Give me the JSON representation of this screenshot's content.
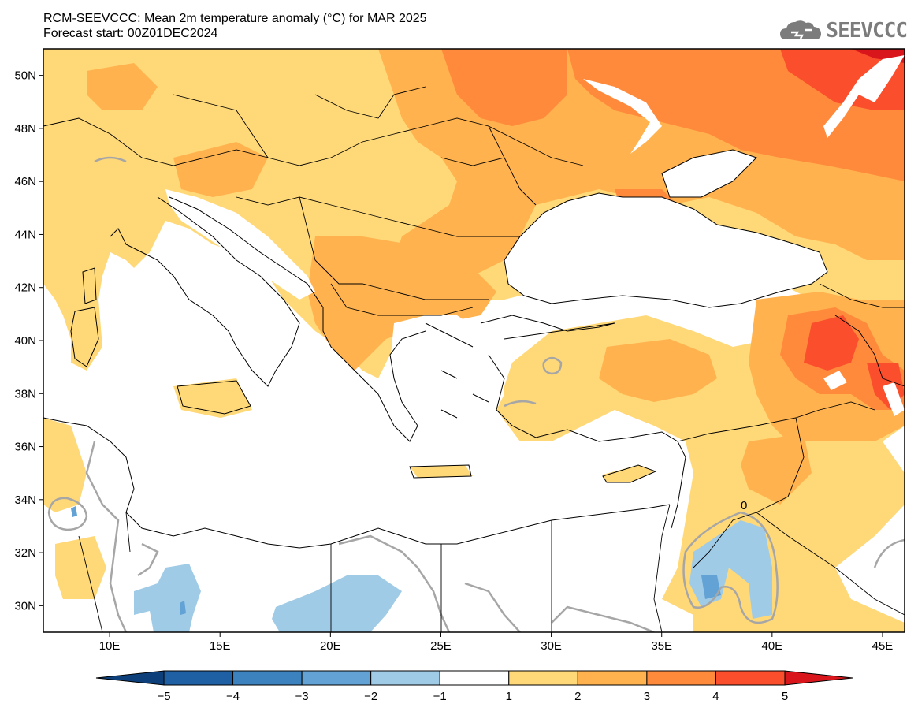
{
  "header": {
    "title_line1": "RCM-SEEVCCC: Mean 2m temperature anomaly (°C) for MAR 2025",
    "title_line2": "Forecast start: 00Z01DEC2024"
  },
  "logo": {
    "text": "SEEVCCC",
    "icon": "cloud-icon",
    "color": "#7c7c7c"
  },
  "map": {
    "lon_range": [
      7,
      46
    ],
    "lat_range": [
      29,
      51
    ],
    "lat_ticks": [
      "50N",
      "48N",
      "46N",
      "44N",
      "42N",
      "40N",
      "38N",
      "36N",
      "34N",
      "32N",
      "30N"
    ],
    "lon_ticks": [
      "10E",
      "15E",
      "20E",
      "25E",
      "30E",
      "35E",
      "40E",
      "45E"
    ],
    "contour_label": "0"
  },
  "colorbar": {
    "ticks": [
      "−5",
      "−4",
      "−3",
      "−2",
      "−1",
      "1",
      "2",
      "3",
      "4",
      "5"
    ],
    "colors": [
      "#1f5fa4",
      "#3b82bf",
      "#62a2d4",
      "#9fcbe7",
      "#ffffff",
      "#ffd878",
      "#ffb24e",
      "#ff8a3c",
      "#fb4e2c"
    ],
    "low_extend_color": "#0d3f7a",
    "high_extend_color": "#d8161b"
  }
}
